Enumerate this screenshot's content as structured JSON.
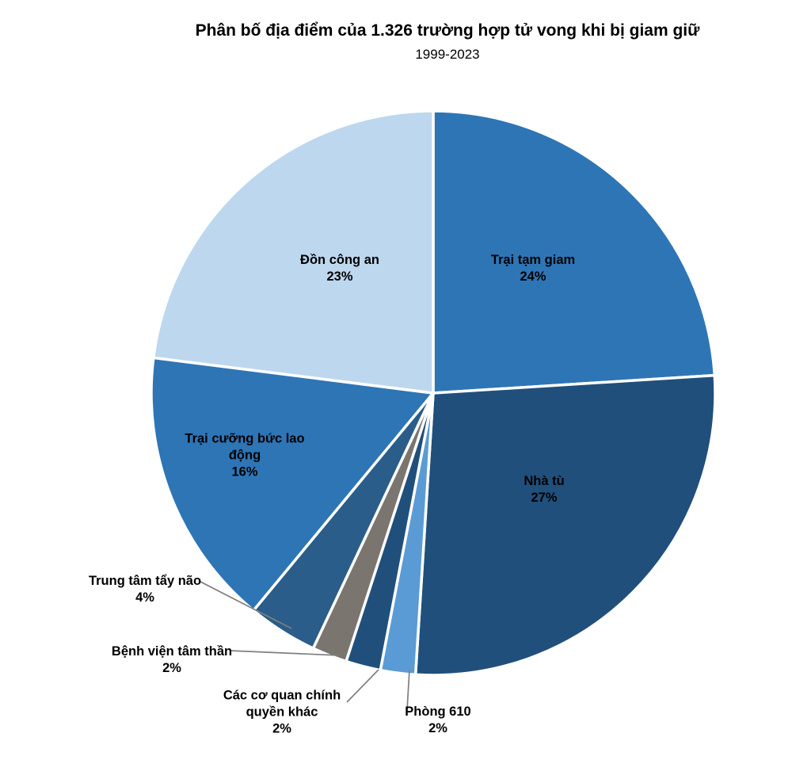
{
  "page": {
    "title": "Phân bố địa điểm của 1.326 trường hợp tử vong khi bị giam giữ",
    "subtitle": "1999-2023"
  },
  "chart_data": {
    "type": "pie",
    "title": "Phân bố địa điểm của 1.326 trường hợp tử vong khi bị giam giữ",
    "subtitle": "1999-2023",
    "unit": "%",
    "start_angle_deg": 0,
    "direction": "clockwise",
    "slices": [
      {
        "label": "Trại tạm giam",
        "value": 24,
        "color": "#2E75B6",
        "label_position": "inside"
      },
      {
        "label": "Nhà tù",
        "value": 27,
        "color": "#204F7C",
        "label_position": "inside"
      },
      {
        "label": "Phòng 610",
        "value": 2,
        "color": "#5B9BD5",
        "label_position": "outside"
      },
      {
        "label": "Các cơ quan chính quyền khác",
        "value": 2,
        "color": "#204F7C",
        "label_position": "outside"
      },
      {
        "label": "Bệnh viện tâm thần",
        "value": 2,
        "color": "#7B7570",
        "label_position": "outside"
      },
      {
        "label": "Trung tâm tẩy não",
        "value": 4,
        "color": "#2A5D89",
        "label_position": "outside"
      },
      {
        "label": "Trại cưỡng bức lao động",
        "value": 16,
        "color": "#2E75B6",
        "label_position": "inside"
      },
      {
        "label": "Đồn công an",
        "value": 23,
        "color": "#BDD7EE",
        "label_position": "inside"
      }
    ],
    "colors": {
      "slice_separator": "#FFFFFF",
      "leader_line": "#7F7F7F",
      "label_text": "#000000"
    }
  }
}
